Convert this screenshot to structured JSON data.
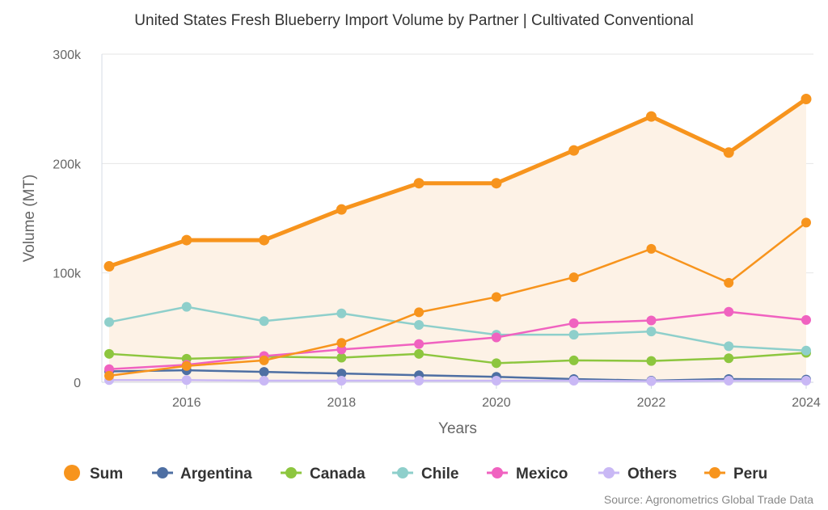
{
  "chart_data": {
    "type": "line",
    "title": "United States Fresh Blueberry Import Volume by Partner | Cultivated Conventional",
    "xlabel": "Years",
    "ylabel": "Volume (MT)",
    "ylim": [
      0,
      300000
    ],
    "xlim": [
      2015,
      2024
    ],
    "x": [
      2015,
      2016,
      2017,
      2018,
      2019,
      2020,
      2021,
      2022,
      2023,
      2024
    ],
    "x_ticks": [
      2016,
      2018,
      2020,
      2022,
      2024
    ],
    "x_tick_labels": [
      "2016",
      "2018",
      "2020",
      "2022",
      "2024"
    ],
    "y_ticks": [
      0,
      100000,
      200000,
      300000
    ],
    "y_tick_labels": [
      "0",
      "100k",
      "200k",
      "300k"
    ],
    "grid": "horizontal",
    "legend_position": "bottom",
    "series": [
      {
        "name": "Sum",
        "color": "#f7941d",
        "emphasis": true,
        "area_fill": "#fdf2e6",
        "values": [
          106000,
          130000,
          130000,
          158000,
          182000,
          182000,
          212000,
          243000,
          210000,
          259000
        ]
      },
      {
        "name": "Argentina",
        "color": "#4e6fa3",
        "values": [
          10000,
          11000,
          9500,
          8000,
          6500,
          5000,
          3000,
          1500,
          3000,
          2500
        ]
      },
      {
        "name": "Canada",
        "color": "#8dc63f",
        "values": [
          26000,
          21500,
          23500,
          22500,
          26000,
          17500,
          20000,
          19500,
          22000,
          27000
        ]
      },
      {
        "name": "Chile",
        "color": "#8ecfcb",
        "values": [
          55000,
          69000,
          56000,
          63000,
          52500,
          43500,
          43500,
          46500,
          33000,
          29000
        ]
      },
      {
        "name": "Mexico",
        "color": "#f062c0",
        "values": [
          12000,
          16000,
          24000,
          30000,
          35000,
          41000,
          54000,
          56500,
          64500,
          57000
        ]
      },
      {
        "name": "Others",
        "color": "#c9b8f5",
        "values": [
          2000,
          2000,
          1500,
          1500,
          1500,
          1500,
          1500,
          1000,
          1500,
          1500
        ]
      },
      {
        "name": "Peru",
        "color": "#f7941d",
        "values": [
          6000,
          15000,
          20000,
          36000,
          64000,
          78000,
          96000,
          122000,
          91000,
          146000
        ]
      }
    ],
    "source": "Source: Agronometrics Global Trade Data"
  }
}
